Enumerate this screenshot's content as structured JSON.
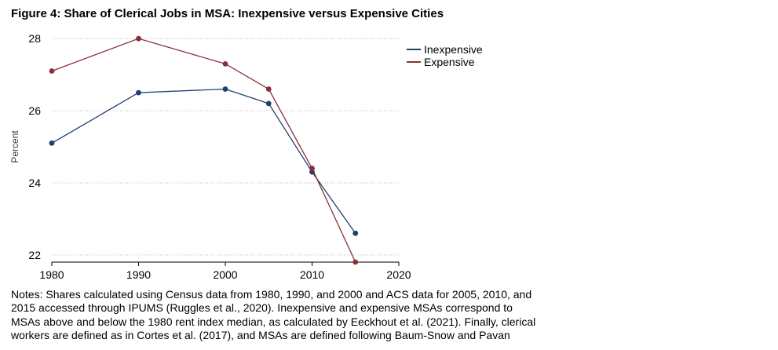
{
  "title": "Figure 4: Share of Clerical Jobs in MSA: Inexpensive versus Expensive Cities",
  "notes_lines": [
    "Notes: Shares calculated using Census data from 1980, 1990, and 2000 and ACS data for 2005, 2010, and",
    "2015 accessed through IPUMS (Ruggles et al., 2020). Inexpensive and expensive MSAs correspond to",
    "MSAs above and below the 1980 rent index median, as calculated by Eeckhout et al. (2021). Finally, clerical",
    "workers are defined as in Cortes et al. (2017), and MSAs are defined following Baum-Snow and Pavan"
  ],
  "chart_data": {
    "type": "line",
    "title": "Share of Clerical Jobs in MSA: Inexpensive versus Expensive Cities",
    "xlabel": "",
    "ylabel": "Percent",
    "xlim": [
      1980,
      2020
    ],
    "ylim": [
      21.8,
      28.2
    ],
    "xticks": [
      1980,
      1990,
      2000,
      2010,
      2020
    ],
    "yticks": [
      22,
      24,
      26,
      28
    ],
    "grid": "horizontal dotted",
    "legend_position": "top-right",
    "x": [
      1980,
      1990,
      2000,
      2005,
      2010,
      2015
    ],
    "series": [
      {
        "name": "Inexpensive",
        "color": "#1f3f6e",
        "values": [
          25.1,
          26.5,
          26.6,
          26.2,
          24.3,
          22.6
        ]
      },
      {
        "name": "Expensive",
        "color": "#8b2e3a",
        "values": [
          27.1,
          28.0,
          27.3,
          26.6,
          24.4,
          21.8
        ]
      }
    ]
  }
}
